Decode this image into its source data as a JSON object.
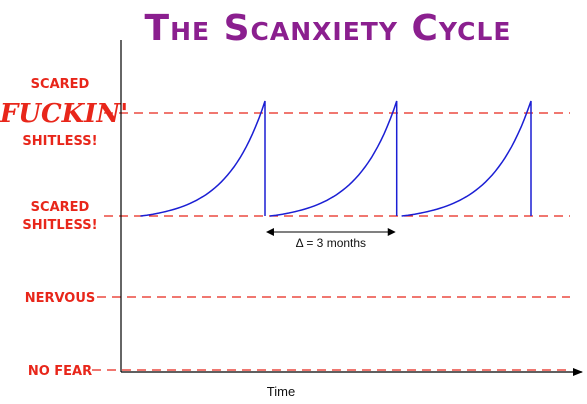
{
  "chart_data": {
    "type": "line",
    "title": "The Scanxiety Cycle",
    "xlabel": "Time",
    "ylabel": "",
    "levels": [
      {
        "key": "no_fear",
        "lines": [
          "NO FEAR"
        ],
        "value": 0
      },
      {
        "key": "nervous",
        "lines": [
          "NERVOUS"
        ],
        "value": 1
      },
      {
        "key": "scared",
        "lines": [
          "SCARED",
          "SHITLESS!"
        ],
        "value": 2
      },
      {
        "key": "scared_fuckin",
        "lines": [
          "SCARED",
          "FUCKIN'",
          "SHITLESS!"
        ],
        "value": 3
      }
    ],
    "ylim": [
      0,
      3.2
    ],
    "cycles": [
      {
        "start": 0.4,
        "end": 2.95,
        "low": 2,
        "high": 3.15
      },
      {
        "start": 3.05,
        "end": 5.65,
        "low": 2,
        "high": 3.15
      },
      {
        "start": 5.75,
        "end": 8.4,
        "low": 2,
        "high": 3.15
      }
    ],
    "xlim": [
      0,
      9.2
    ],
    "annotation": {
      "text": "Δ = 3 months",
      "from": 2.95,
      "to": 5.65,
      "level": 2
    },
    "grid": false,
    "legend": "none",
    "colors": {
      "title": "#8b1f8f",
      "levels": "#e8261a",
      "curve": "#1b1fd4",
      "axis": "#000000"
    }
  }
}
